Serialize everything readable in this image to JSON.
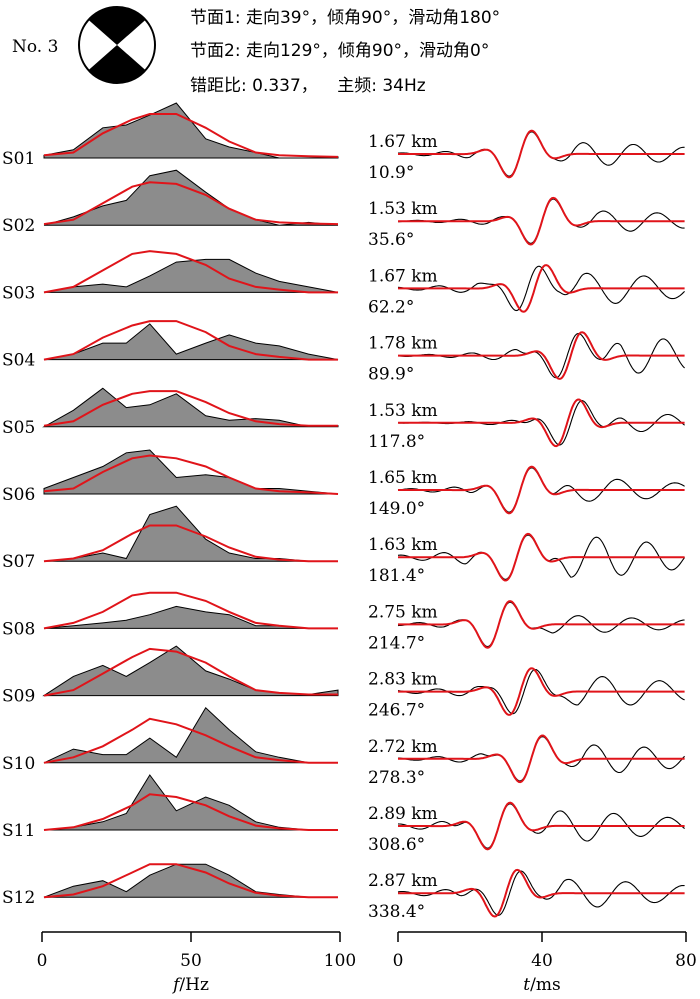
{
  "header": {
    "event_no": "No. 3",
    "plane1": "节面1: 走向39°，倾角90°，滑动角180°",
    "plane2": "节面2: 走向129°，倾角90°，滑动角0°",
    "misfit_prefix": "错距比: 0.337，",
    "freq_label": "主频: 34Hz"
  },
  "chart_data": [
    {
      "type": "area",
      "title": "",
      "xlabel_italic": "f",
      "xlabel_rest": "/Hz",
      "xlim": [
        0,
        100
      ],
      "xticks": [
        0,
        50,
        100
      ],
      "stations": [
        "S01",
        "S02",
        "S03",
        "S04",
        "S05",
        "S06",
        "S07",
        "S08",
        "S09",
        "S10",
        "S11",
        "S12"
      ],
      "observed_x": [
        0,
        10,
        20,
        28,
        36,
        45,
        55,
        63,
        72,
        80,
        90,
        100
      ],
      "observed_spectra": [
        [
          0.05,
          0.15,
          0.55,
          0.6,
          0.78,
          1.0,
          0.35,
          0.2,
          0.1,
          0.0,
          0.0,
          0.02
        ],
        [
          0.0,
          0.15,
          0.35,
          0.45,
          0.9,
          1.0,
          0.6,
          0.3,
          0.1,
          0.0,
          0.05,
          0.0
        ],
        [
          0.0,
          0.1,
          0.15,
          0.1,
          0.3,
          0.55,
          0.6,
          0.6,
          0.35,
          0.2,
          0.1,
          0.0
        ],
        [
          0.0,
          0.1,
          0.3,
          0.3,
          0.65,
          0.1,
          0.3,
          0.45,
          0.3,
          0.25,
          0.1,
          0.0
        ],
        [
          0.0,
          0.3,
          0.7,
          0.35,
          0.4,
          0.6,
          0.2,
          0.12,
          0.15,
          0.12,
          0.0,
          0.02
        ],
        [
          0.1,
          0.3,
          0.5,
          0.75,
          0.8,
          0.3,
          0.35,
          0.3,
          0.1,
          0.1,
          0.05,
          0.0
        ],
        [
          0.0,
          0.05,
          0.15,
          0.05,
          0.85,
          1.0,
          0.4,
          0.15,
          0.05,
          0.05,
          0.0,
          0.0
        ],
        [
          0.0,
          0.05,
          0.1,
          0.15,
          0.25,
          0.4,
          0.3,
          0.25,
          0.05,
          0.05,
          0.0,
          0.0
        ],
        [
          0.0,
          0.35,
          0.55,
          0.35,
          0.6,
          0.9,
          0.45,
          0.3,
          0.1,
          0.05,
          0.02,
          0.1
        ],
        [
          0.0,
          0.25,
          0.15,
          0.15,
          0.45,
          0.1,
          1.0,
          0.6,
          0.2,
          0.1,
          0.0,
          0.0
        ],
        [
          0.0,
          0.05,
          0.15,
          0.3,
          1.0,
          0.35,
          0.6,
          0.45,
          0.15,
          0.05,
          0.0,
          0.0
        ],
        [
          0.0,
          0.2,
          0.3,
          0.1,
          0.4,
          0.6,
          0.6,
          0.4,
          0.1,
          0.05,
          0.0,
          0.0
        ]
      ],
      "synthetic_x": [
        0,
        10,
        20,
        30,
        36,
        45,
        55,
        63,
        72,
        80,
        90,
        100
      ],
      "synthetic_spectra": [
        [
          0.05,
          0.1,
          0.45,
          0.7,
          0.8,
          0.8,
          0.55,
          0.3,
          0.1,
          0.05,
          0.03,
          0.02
        ],
        [
          0.02,
          0.1,
          0.4,
          0.7,
          0.78,
          0.75,
          0.55,
          0.3,
          0.1,
          0.05,
          0.03,
          0.02
        ],
        [
          0.0,
          0.1,
          0.4,
          0.7,
          0.75,
          0.7,
          0.5,
          0.25,
          0.1,
          0.05,
          0.0,
          0.0
        ],
        [
          0.0,
          0.1,
          0.4,
          0.62,
          0.7,
          0.7,
          0.5,
          0.25,
          0.1,
          0.05,
          0.0,
          0.0
        ],
        [
          0.02,
          0.1,
          0.4,
          0.6,
          0.65,
          0.65,
          0.45,
          0.25,
          0.1,
          0.05,
          0.02,
          0.02
        ],
        [
          0.05,
          0.1,
          0.4,
          0.65,
          0.7,
          0.65,
          0.5,
          0.3,
          0.1,
          0.05,
          0.03,
          0.0
        ],
        [
          0.0,
          0.05,
          0.2,
          0.5,
          0.65,
          0.65,
          0.45,
          0.25,
          0.08,
          0.03,
          0.0,
          0.0
        ],
        [
          0.0,
          0.1,
          0.3,
          0.6,
          0.65,
          0.65,
          0.5,
          0.3,
          0.1,
          0.05,
          0.0,
          0.0
        ],
        [
          0.0,
          0.1,
          0.4,
          0.7,
          0.85,
          0.8,
          0.6,
          0.35,
          0.1,
          0.05,
          0.02,
          0.02
        ],
        [
          0.0,
          0.1,
          0.3,
          0.6,
          0.8,
          0.7,
          0.5,
          0.3,
          0.1,
          0.05,
          0.0,
          0.0
        ],
        [
          0.0,
          0.05,
          0.2,
          0.45,
          0.65,
          0.6,
          0.45,
          0.25,
          0.08,
          0.03,
          0.0,
          0.0
        ],
        [
          0.0,
          0.05,
          0.2,
          0.45,
          0.6,
          0.6,
          0.45,
          0.25,
          0.08,
          0.03,
          0.0,
          0.0
        ]
      ]
    },
    {
      "type": "line",
      "title": "",
      "xlabel_italic": "t",
      "xlabel_rest": "/ms",
      "xlim": [
        0,
        80
      ],
      "xticks": [
        0,
        40,
        80
      ],
      "distances": [
        "1.67 km",
        "1.53 km",
        "1.67 km",
        "1.78 km",
        "1.53 km",
        "1.65 km",
        "1.63 km",
        "2.75 km",
        "2.83 km",
        "2.72 km",
        "2.89 km",
        "2.87 km"
      ],
      "azimuths": [
        "10.9°",
        "35.6°",
        "62.2°",
        "89.9°",
        "117.8°",
        "149.0°",
        "181.4°",
        "214.7°",
        "246.7°",
        "278.3°",
        "308.6°",
        "338.4°"
      ],
      "synthetic_center_ms": [
        34,
        40,
        38,
        48,
        47,
        34,
        33,
        28,
        34,
        37,
        28,
        30
      ],
      "observed_shift_ms": [
        0,
        0,
        -2,
        -1,
        1,
        0,
        0,
        0,
        1,
        0,
        0,
        1
      ],
      "observed_coda_amp": [
        0.45,
        0.4,
        0.6,
        0.7,
        0.35,
        0.45,
        0.8,
        0.35,
        0.6,
        0.55,
        0.6,
        0.55
      ]
    }
  ]
}
